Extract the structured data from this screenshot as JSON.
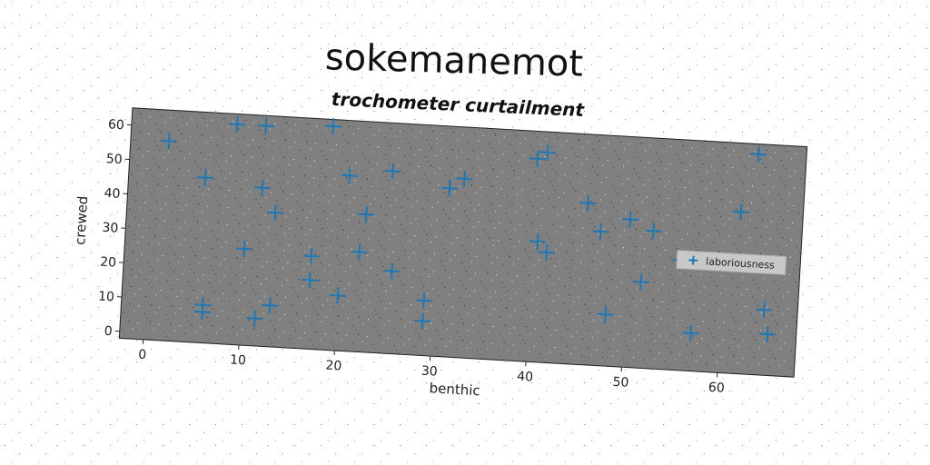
{
  "chart_data": {
    "type": "scatter",
    "title": "sokemanemot",
    "subtitle": "trochometer curtailment",
    "xlabel": "benthic",
    "ylabel": "crewed",
    "xlim": [
      -2.5,
      68
    ],
    "ylim": [
      -2,
      65
    ],
    "xticks": [
      0,
      10,
      20,
      30,
      40,
      50,
      60
    ],
    "yticks": [
      0,
      10,
      20,
      30,
      40,
      50,
      60
    ],
    "grid": false,
    "legend_position": "right",
    "marker": "plus",
    "colors": {
      "plot_background": "#808080",
      "series": "#1f77b4",
      "legend_background": "#c8c8c8"
    },
    "series": [
      {
        "name": "laboriousness",
        "x": [
          1.5,
          5.5,
          8.5,
          11.5,
          18.5,
          11.5,
          20.5,
          25,
          13,
          10,
          6,
          6,
          11.5,
          13,
          17,
          17,
          20,
          22,
          22.5,
          25.5,
          29,
          29,
          31,
          32.5,
          40,
          41,
          40.5,
          41.5,
          45.5,
          47,
          48,
          50,
          51.5,
          52.5,
          55.5,
          57,
          61.5,
          62,
          63,
          65,
          64.5,
          65
        ],
        "y": [
          56,
          46,
          62,
          62,
          63,
          44,
          49,
          51,
          37,
          26,
          9,
          7,
          6,
          10,
          25,
          18,
          14,
          27,
          38,
          22,
          14,
          8,
          47,
          50,
          57,
          59,
          33,
          30,
          45,
          37,
          13,
          41,
          23,
          38,
          30,
          9,
          45,
          30,
          62,
          69,
          17,
          10
        ]
      }
    ]
  }
}
